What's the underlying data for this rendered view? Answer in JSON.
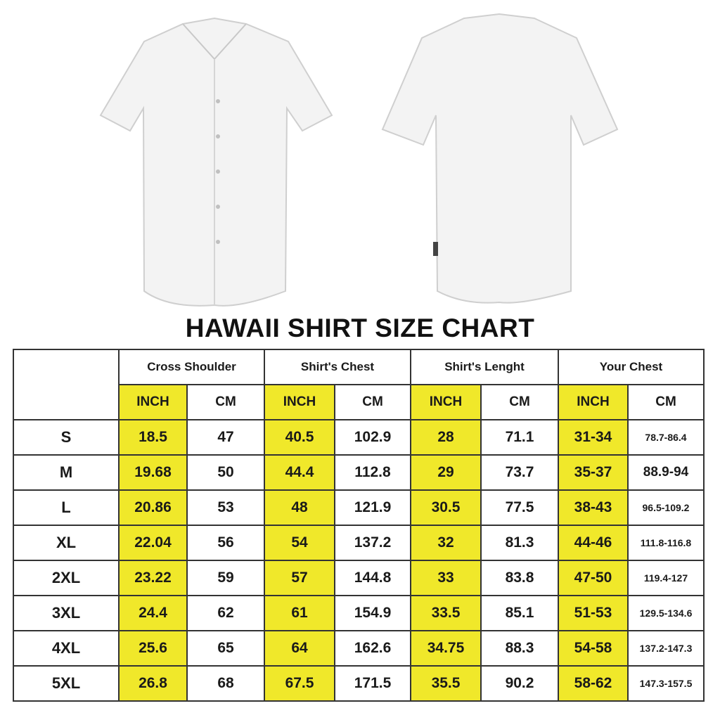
{
  "title": "HAWAII SHIRT SIZE CHART",
  "colors": {
    "highlight": "#f0e82a",
    "shirt": "#f2f2f2",
    "border": "#333333"
  },
  "groups": [
    "Cross Shoulder",
    "Shirt's Chest",
    "Shirt's Lenght",
    "Your Chest"
  ],
  "units": [
    "INCH",
    "CM"
  ],
  "rows": [
    {
      "size": "S",
      "values": [
        "18.5",
        "47",
        "40.5",
        "102.9",
        "28",
        "71.1",
        "31-34",
        "78.7-86.4"
      ]
    },
    {
      "size": "M",
      "values": [
        "19.68",
        "50",
        "44.4",
        "112.8",
        "29",
        "73.7",
        "35-37",
        "88.9-94"
      ]
    },
    {
      "size": "L",
      "values": [
        "20.86",
        "53",
        "48",
        "121.9",
        "30.5",
        "77.5",
        "38-43",
        "96.5-109.2"
      ]
    },
    {
      "size": "XL",
      "values": [
        "22.04",
        "56",
        "54",
        "137.2",
        "32",
        "81.3",
        "44-46",
        "111.8-116.8"
      ]
    },
    {
      "size": "2XL",
      "values": [
        "23.22",
        "59",
        "57",
        "144.8",
        "33",
        "83.8",
        "47-50",
        "119.4-127"
      ]
    },
    {
      "size": "3XL",
      "values": [
        "24.4",
        "62",
        "61",
        "154.9",
        "33.5",
        "85.1",
        "51-53",
        "129.5-134.6"
      ]
    },
    {
      "size": "4XL",
      "values": [
        "25.6",
        "65",
        "64",
        "162.6",
        "34.75",
        "88.3",
        "54-58",
        "137.2-147.3"
      ]
    },
    {
      "size": "5XL",
      "values": [
        "26.8",
        "68",
        "67.5",
        "171.5",
        "35.5",
        "90.2",
        "58-62",
        "147.3-157.5"
      ]
    }
  ]
}
